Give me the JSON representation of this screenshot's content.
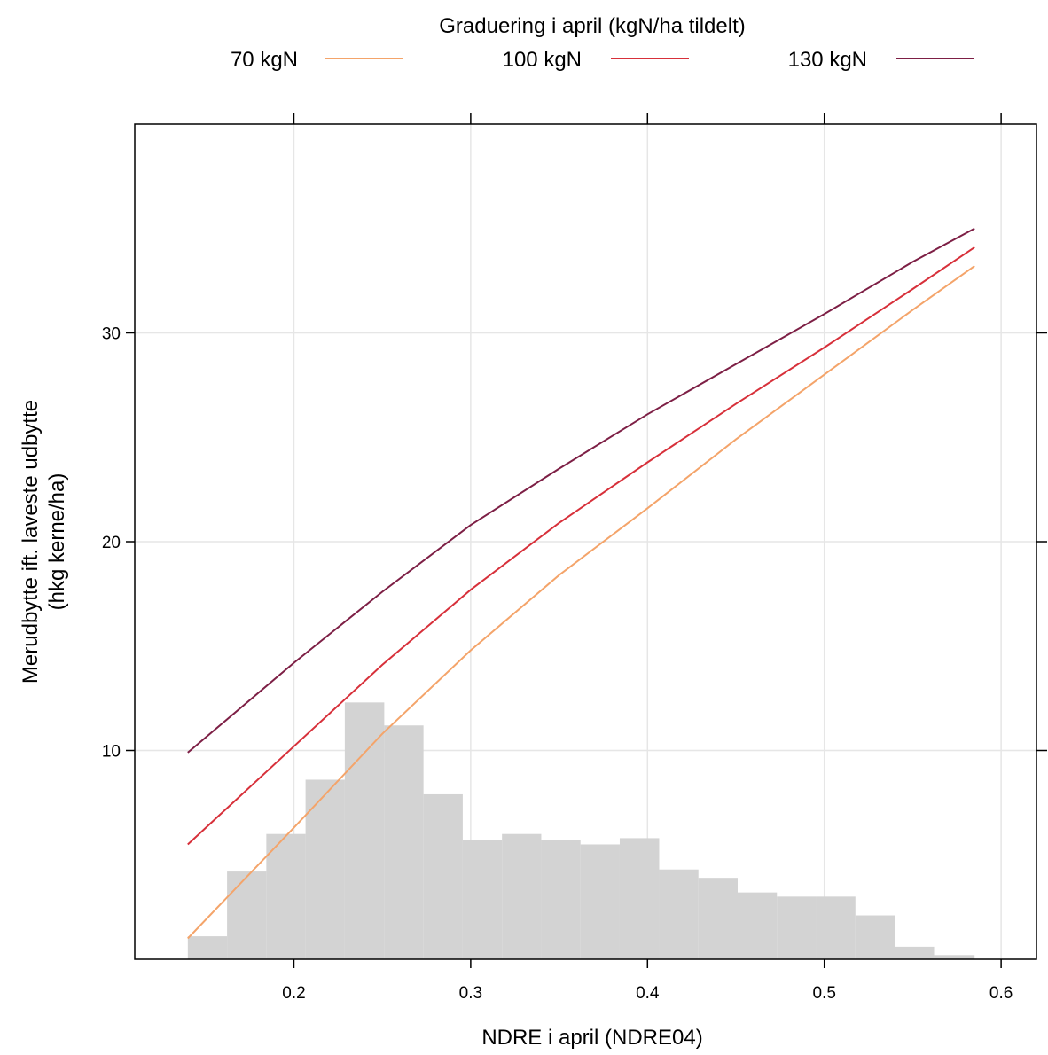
{
  "chart_data": {
    "type": "line",
    "title": "",
    "xlabel": "NDRE i april (NDRE04)",
    "ylabel_line1": "Merudbytte ift. laveste udbytte",
    "ylabel_line2": "(hkg kerne/ha)",
    "xlim": [
      0.11,
      0.62
    ],
    "ylim": [
      0,
      40
    ],
    "x_ticks": [
      0.2,
      0.3,
      0.4,
      0.5,
      0.6
    ],
    "x_tick_labels": [
      "0.2",
      "0.3",
      "0.4",
      "0.5",
      "0.6"
    ],
    "y_ticks": [
      10,
      20,
      30
    ],
    "y_tick_labels": [
      "10",
      "20",
      "30"
    ],
    "grid": true,
    "legend": {
      "title": "Graduering i april (kgN/ha tildelt)",
      "placement": "top"
    },
    "series": [
      {
        "name": "70 kgN",
        "color": "#F4A46A",
        "x": [
          0.14,
          0.2,
          0.25,
          0.3,
          0.35,
          0.4,
          0.45,
          0.5,
          0.55,
          0.585
        ],
        "y": [
          1.0,
          6.3,
          10.8,
          14.8,
          18.4,
          21.6,
          24.9,
          28.0,
          31.1,
          33.2
        ]
      },
      {
        "name": "100 kgN",
        "color": "#D7303A",
        "x": [
          0.14,
          0.2,
          0.25,
          0.3,
          0.35,
          0.4,
          0.45,
          0.5,
          0.55,
          0.585
        ],
        "y": [
          5.5,
          10.2,
          14.1,
          17.7,
          20.9,
          23.8,
          26.6,
          29.3,
          32.1,
          34.1
        ]
      },
      {
        "name": "130 kgN",
        "color": "#7D1F45",
        "x": [
          0.14,
          0.2,
          0.25,
          0.3,
          0.35,
          0.4,
          0.45,
          0.5,
          0.55,
          0.585
        ],
        "y": [
          9.9,
          14.2,
          17.6,
          20.8,
          23.5,
          26.1,
          28.5,
          30.9,
          33.4,
          35.0
        ]
      }
    ],
    "histogram": {
      "color": "#D3D3D3",
      "bin_edges": [
        0.14,
        0.1622,
        0.1844,
        0.2066,
        0.2288,
        0.2511,
        0.2733,
        0.2955,
        0.3177,
        0.3399,
        0.3621,
        0.3843,
        0.4066,
        0.4288,
        0.451,
        0.4732,
        0.4954,
        0.5176,
        0.5398,
        0.5621,
        0.585
      ],
      "heights": [
        1.1,
        4.2,
        6.0,
        8.6,
        12.3,
        11.2,
        7.9,
        5.7,
        6.0,
        5.7,
        5.5,
        5.8,
        4.3,
        3.9,
        3.2,
        3.0,
        3.0,
        2.1,
        0.6,
        0.2
      ]
    }
  }
}
